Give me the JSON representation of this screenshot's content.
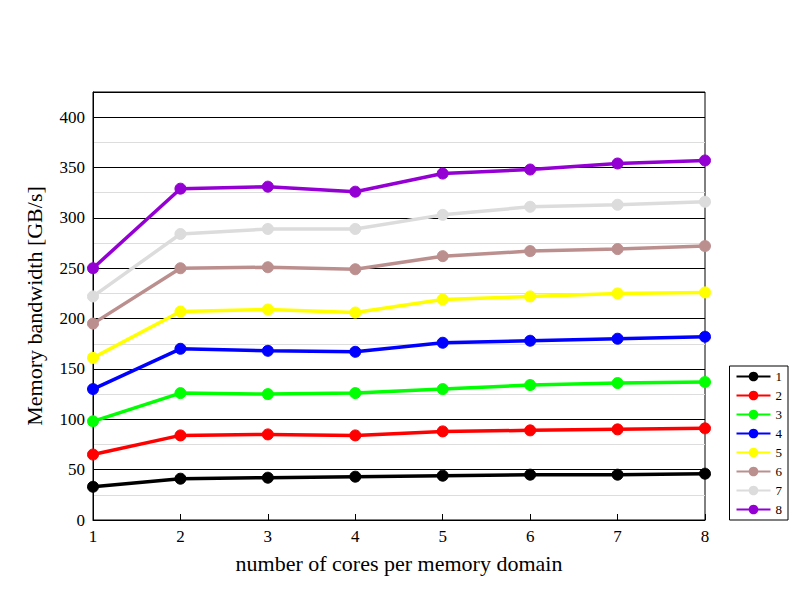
{
  "chart_data": {
    "type": "line",
    "x_label": "number of cores per memory domain",
    "y_label": "Memory bandwidth [GB/s]",
    "x": [
      1,
      2,
      3,
      4,
      5,
      6,
      7,
      8
    ],
    "xlim": [
      1,
      8
    ],
    "xticks": [
      1,
      2,
      3,
      4,
      5,
      6,
      7,
      8
    ],
    "ylim": [
      0,
      425
    ],
    "yticks": [
      0,
      50,
      100,
      150,
      200,
      250,
      300,
      350,
      400
    ],
    "grid": true,
    "legend": "lower right",
    "marker": "circle",
    "line_style": "solid",
    "series": [
      {
        "name": "1",
        "color": "#000000",
        "values": [
          33,
          41,
          42,
          43,
          44,
          45,
          45,
          46
        ]
      },
      {
        "name": "2",
        "color": "#ff0000",
        "values": [
          65,
          84,
          85,
          84,
          88,
          89,
          90,
          91
        ]
      },
      {
        "name": "3",
        "color": "#00ff00",
        "values": [
          98,
          126,
          125,
          126,
          130,
          134,
          136,
          137
        ]
      },
      {
        "name": "4",
        "color": "#0000ff",
        "values": [
          130,
          170,
          168,
          167,
          176,
          178,
          180,
          182
        ]
      },
      {
        "name": "5",
        "color": "#ffff00",
        "values": [
          161,
          207,
          209,
          206,
          219,
          222,
          225,
          226
        ]
      },
      {
        "name": "6",
        "color": "#bc8f8f",
        "values": [
          195,
          250,
          251,
          249,
          262,
          267,
          269,
          272
        ]
      },
      {
        "name": "7",
        "color": "#dcdcdc",
        "values": [
          222,
          284,
          289,
          289,
          303,
          311,
          313,
          316
        ]
      },
      {
        "name": "8",
        "color": "#9400d3",
        "values": [
          250,
          329,
          331,
          326,
          344,
          348,
          354,
          357
        ]
      }
    ]
  }
}
